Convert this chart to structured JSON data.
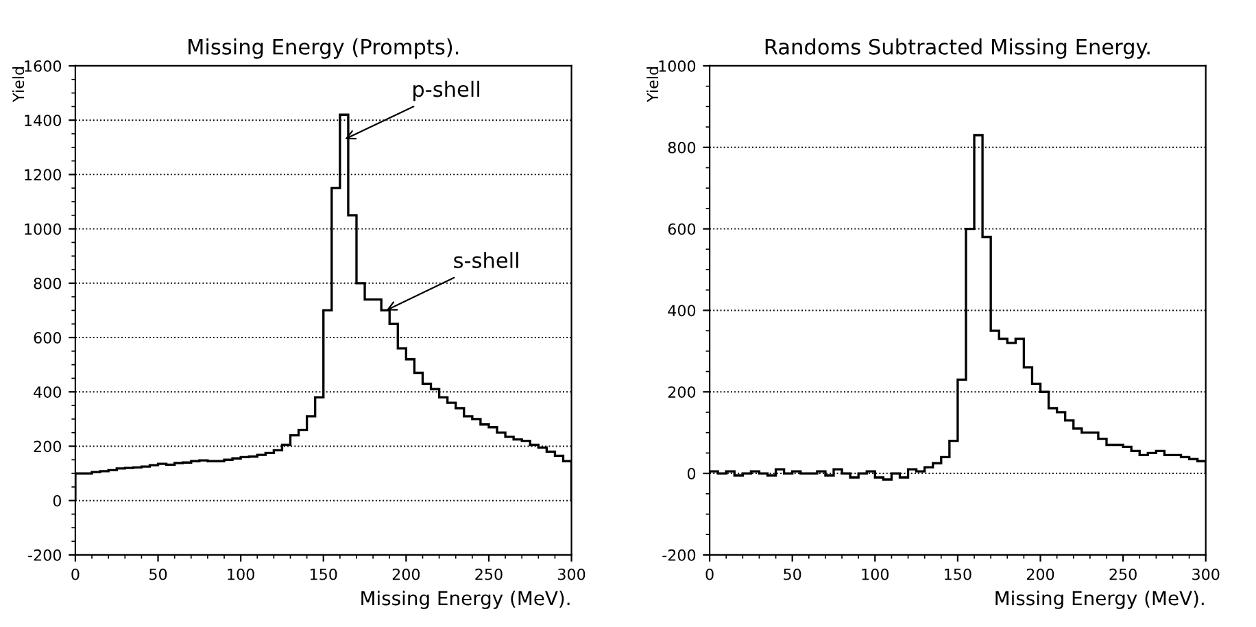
{
  "chart_data": [
    {
      "type": "histogram",
      "title": "Missing Energy (Prompts).",
      "xlabel": "Missing Energy (MeV).",
      "ylabel": "Yield",
      "bins": [
        0,
        5,
        10,
        15,
        20,
        25,
        30,
        35,
        40,
        45,
        50,
        55,
        60,
        65,
        70,
        75,
        80,
        85,
        90,
        95,
        100,
        105,
        110,
        115,
        120,
        125,
        130,
        135,
        140,
        145,
        150,
        155,
        160,
        165,
        170,
        175,
        180,
        185,
        190,
        195,
        200,
        205,
        210,
        215,
        220,
        225,
        230,
        235,
        240,
        245,
        250,
        255,
        260,
        265,
        270,
        275,
        280,
        285,
        290,
        295,
        300
      ],
      "values": [
        100,
        100,
        105,
        108,
        112,
        118,
        120,
        122,
        125,
        130,
        135,
        132,
        138,
        140,
        145,
        148,
        145,
        145,
        150,
        155,
        160,
        162,
        168,
        175,
        185,
        205,
        240,
        260,
        310,
        380,
        700,
        1150,
        1420,
        1050,
        800,
        740,
        740,
        700,
        650,
        560,
        520,
        470,
        430,
        410,
        380,
        360,
        340,
        310,
        300,
        280,
        270,
        250,
        235,
        225,
        220,
        205,
        195,
        180,
        165,
        145
      ],
      "color": "#000000",
      "xlim": [
        0,
        300
      ],
      "ylim": [
        -200,
        1600
      ],
      "xticks": [
        0,
        50,
        100,
        150,
        200,
        250,
        300
      ],
      "yticks": [
        -200,
        0,
        200,
        400,
        600,
        800,
        1000,
        1200,
        1400,
        1600
      ],
      "grid": "y",
      "annotations": [
        {
          "text": "p-shell",
          "x": 163,
          "y": 1330
        },
        {
          "text": "s-shell",
          "x": 188,
          "y": 700
        }
      ]
    },
    {
      "type": "histogram",
      "title": "Randoms Subtracted Missing Energy.",
      "xlabel": "Missing Energy (MeV).",
      "ylabel": "Yield",
      "bins": [
        0,
        5,
        10,
        15,
        20,
        25,
        30,
        35,
        40,
        45,
        50,
        55,
        60,
        65,
        70,
        75,
        80,
        85,
        90,
        95,
        100,
        105,
        110,
        115,
        120,
        125,
        130,
        135,
        140,
        145,
        150,
        155,
        160,
        165,
        170,
        175,
        180,
        185,
        190,
        195,
        200,
        205,
        210,
        215,
        220,
        225,
        230,
        235,
        240,
        245,
        250,
        255,
        260,
        265,
        270,
        275,
        280,
        285,
        290,
        295,
        300
      ],
      "values": [
        5,
        0,
        5,
        -5,
        0,
        5,
        0,
        -5,
        10,
        0,
        5,
        0,
        0,
        5,
        -5,
        10,
        0,
        -10,
        0,
        5,
        -10,
        -15,
        0,
        -10,
        10,
        5,
        15,
        25,
        40,
        80,
        230,
        600,
        830,
        580,
        350,
        330,
        320,
        330,
        260,
        220,
        200,
        160,
        150,
        130,
        110,
        100,
        100,
        85,
        70,
        70,
        65,
        55,
        45,
        50,
        55,
        45,
        45,
        40,
        35,
        30
      ],
      "color": "#000000",
      "xlim": [
        0,
        300
      ],
      "ylim": [
        -200,
        1000
      ],
      "xticks": [
        0,
        50,
        100,
        150,
        200,
        250,
        300
      ],
      "yticks": [
        -200,
        0,
        200,
        400,
        600,
        800,
        1000
      ],
      "grid": "y"
    }
  ]
}
